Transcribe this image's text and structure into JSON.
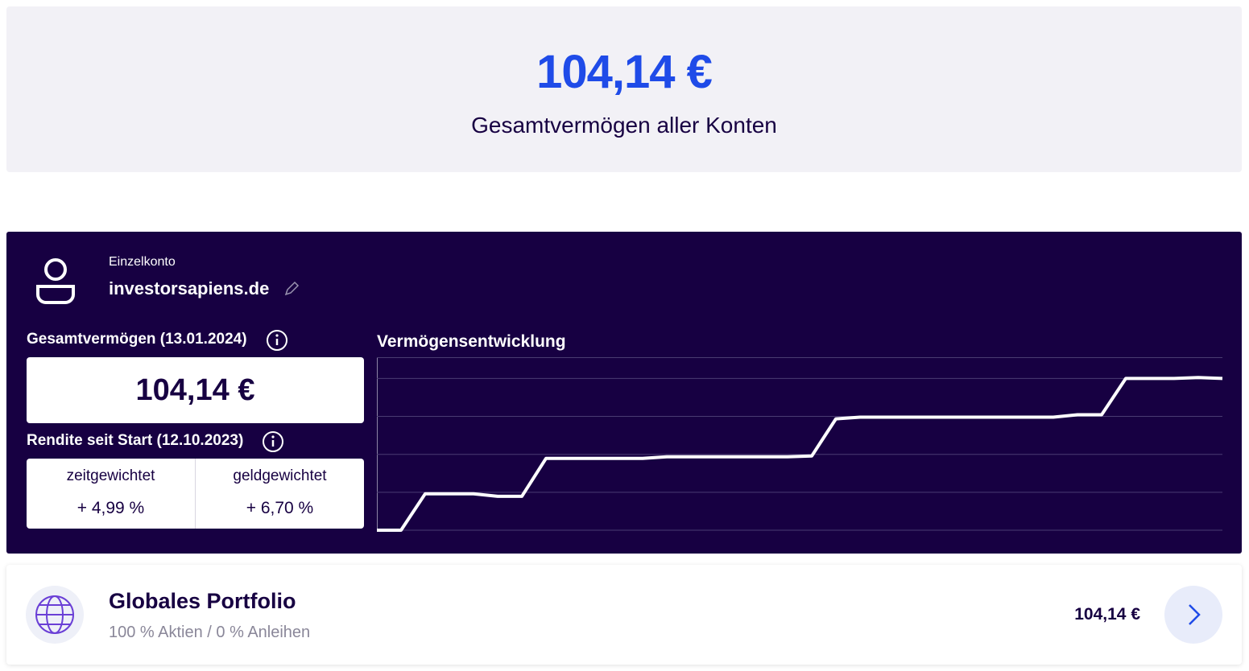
{
  "summary": {
    "total": "104,14 €",
    "label": "Gesamtvermögen aller Konten"
  },
  "account": {
    "type": "Einzelkonto",
    "name": "investorsapiens.de",
    "total_label": "Gesamtvermögen (13.01.2024)",
    "total": "104,14 €",
    "return_label": "Rendite seit Start (12.10.2023)",
    "returns": [
      {
        "label": "zeitgewichtet",
        "value": "+ 4,99 %"
      },
      {
        "label": "geldgewichtet",
        "value": "+ 6,70 %"
      }
    ]
  },
  "chart_data": {
    "type": "line",
    "title": "Vermögensentwicklung",
    "categories": [
      null,
      null,
      null,
      null,
      null,
      null,
      null,
      null,
      null,
      null,
      null,
      null,
      null,
      null,
      null,
      null,
      null,
      null,
      null,
      null,
      null,
      null,
      null,
      null,
      null,
      null,
      null,
      null,
      null,
      null,
      null,
      null,
      null,
      null,
      null,
      null
    ],
    "values": [
      0,
      0,
      24,
      24,
      24,
      22.3,
      22.3,
      47.3,
      47.3,
      47.3,
      47.3,
      47.3,
      48.4,
      48.4,
      48.4,
      48.4,
      48.4,
      48.4,
      48.9,
      73.4,
      74.5,
      74.5,
      74.5,
      74.5,
      74.5,
      74.5,
      74.5,
      74.5,
      74.5,
      76.1,
      76.1,
      100,
      100,
      100,
      100.6,
      100
    ],
    "color": "#ffffff",
    "ylim": [
      0,
      114
    ],
    "yticks": [
      0,
      25,
      50,
      75,
      100
    ],
    "grid": true
  },
  "portfolio": {
    "name": "Globales Portfolio",
    "allocation": "100 % Aktien / 0 % Anleihen",
    "value": "104,14 €"
  }
}
